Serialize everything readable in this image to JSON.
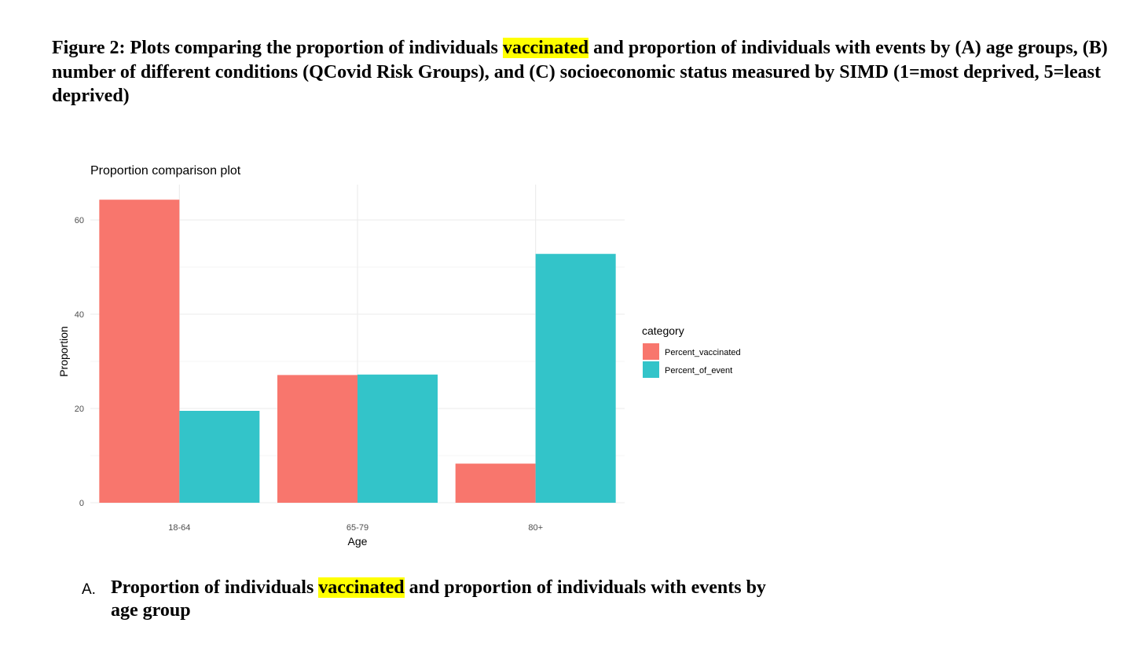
{
  "figure_caption": {
    "before": "Figure 2: Plots comparing the proportion of individuals ",
    "highlight": "vaccinated",
    "after": " and proportion of individuals with events by (A) age groups, (B) number of different conditions (QCovid Risk Groups), and (C) socioeconomic status measured by SIMD (1=most deprived, 5=least deprived)"
  },
  "subcaption": {
    "marker": "A.",
    "before": "Proportion of individuals ",
    "highlight": "vaccinated",
    "after": " and proportion of individuals with events by age group"
  },
  "highlight_color": "#ffff00",
  "chart_data": {
    "type": "bar",
    "title": "Proportion comparison plot",
    "xlabel": "Age",
    "ylabel": "Proportion",
    "categories": [
      "18-64",
      "65-79",
      "80+"
    ],
    "series": [
      {
        "name": "Percent_vaccinated",
        "values": [
          64.3,
          27.1,
          8.3
        ],
        "color": "#f8766d"
      },
      {
        "name": "Percent_of_event",
        "values": [
          19.5,
          27.2,
          52.8
        ],
        "color": "#33c4c9"
      }
    ],
    "ylim": [
      0,
      67.5
    ],
    "yticks": [
      0,
      20,
      40,
      60
    ],
    "grid": true,
    "legend_title": "category",
    "legend_position": "right"
  }
}
